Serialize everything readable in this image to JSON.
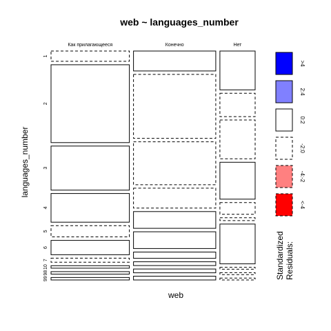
{
  "chart_data": {
    "type": "mosaic",
    "title": "web ~ languages_number",
    "xlabel": "web",
    "ylabel": "languages_number",
    "columns": [
      "Как прилагающееся",
      "Конечно",
      "Нет"
    ],
    "rows": [
      "1",
      "2",
      "3",
      "4",
      "5",
      "6",
      "7",
      "10",
      "98",
      "99"
    ],
    "column_proportions": [
      0.4,
      0.42,
      0.18
    ],
    "cell_proportions": {
      "Как прилагающееся": [
        0.05,
        0.38,
        0.215,
        0.14,
        0.055,
        0.07,
        0.02,
        0.012,
        0.012,
        0.012
      ],
      "Конечно": [
        0.095,
        0.305,
        0.205,
        0.095,
        0.08,
        0.08,
        0.03,
        0.018,
        0.018,
        0.018
      ],
      "Нет": [
        0.2,
        0.12,
        0.2,
        0.19,
        0.06,
        0.015,
        0.205,
        0.01,
        0.01,
        0.01
      ]
    },
    "cell_residual_class": {
      "Как прилагающееся": [
        "-2:0",
        "0:2",
        "0:2",
        "0:2",
        "-2:0",
        "0:2",
        "-2:0",
        "0:2",
        "0:2",
        "0:2"
      ],
      "Конечно": [
        "0:2",
        "-2:0",
        "-2:0",
        "-2:0",
        "0:2",
        "0:2",
        "0:2",
        "0:2",
        "0:2",
        "0:2"
      ],
      "Нет": [
        "0:2",
        "-2:0",
        "-2:0",
        "0:2",
        "-2:0",
        "-2:0",
        "0:2",
        "-2:0",
        "-2:0",
        "-2:0"
      ]
    },
    "legend": {
      "title": "Standardized\nResiduals:",
      "placement": "right",
      "entries": [
        {
          "label": ">4",
          "fill": "#0000ff",
          "dashed": false
        },
        {
          "label": "2:4",
          "fill": "#8080ff",
          "dashed": false
        },
        {
          "label": "0:2",
          "fill": "#ffffff",
          "dashed": false
        },
        {
          "label": "-2:0",
          "fill": "#ffffff",
          "dashed": true
        },
        {
          "label": "-4:-2",
          "fill": "#ff8080",
          "dashed": true
        },
        {
          "label": "<-4",
          "fill": "#ff0000",
          "dashed": true
        }
      ]
    }
  }
}
